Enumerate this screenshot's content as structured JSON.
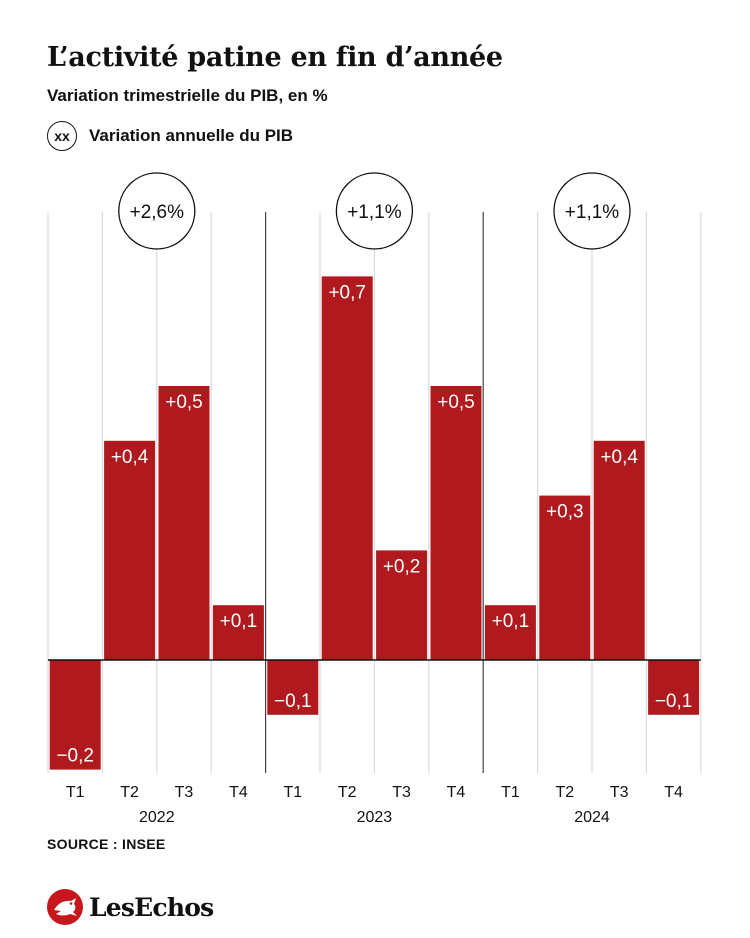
{
  "title": "L’activité patine en fin d’année",
  "subtitle": "Variation trimestrielle du PIB, en %",
  "legend": {
    "symbol_text": "xx",
    "label": "Variation annuelle du PIB"
  },
  "chart_data": {
    "type": "bar",
    "title": "L’activité patine en fin d’année",
    "subtitle": "Variation trimestrielle du PIB, en %",
    "unit": "%",
    "bar_color": "#b0191e",
    "ylim": [
      -0.2,
      0.7
    ],
    "groups": [
      {
        "year": "2022",
        "annual_label": "+2,6%",
        "annual_value": 2.6,
        "quarters": [
          "T1",
          "T2",
          "T3",
          "T4"
        ],
        "values": [
          -0.2,
          0.4,
          0.5,
          0.1
        ],
        "labels": [
          "−0,2",
          "+0,4",
          "+0,5",
          "+0,1"
        ]
      },
      {
        "year": "2023",
        "annual_label": "+1,1%",
        "annual_value": 1.1,
        "quarters": [
          "T1",
          "T2",
          "T3",
          "T4"
        ],
        "values": [
          -0.1,
          0.7,
          0.2,
          0.5
        ],
        "labels": [
          "−0,1",
          "+0,7",
          "+0,2",
          "+0,5"
        ]
      },
      {
        "year": "2024",
        "annual_label": "+1,1%",
        "annual_value": 1.1,
        "quarters": [
          "T1",
          "T2",
          "T3",
          "T4"
        ],
        "values": [
          0.1,
          0.3,
          0.4,
          -0.1
        ],
        "labels": [
          "+0,1",
          "+0,3",
          "+0,4",
          "−0,1"
        ]
      }
    ],
    "grid": true,
    "legend_position": "top-left"
  },
  "source": "SOURCE : INSEE",
  "brand": {
    "name": "LesEchos",
    "color": "#c8161d"
  }
}
